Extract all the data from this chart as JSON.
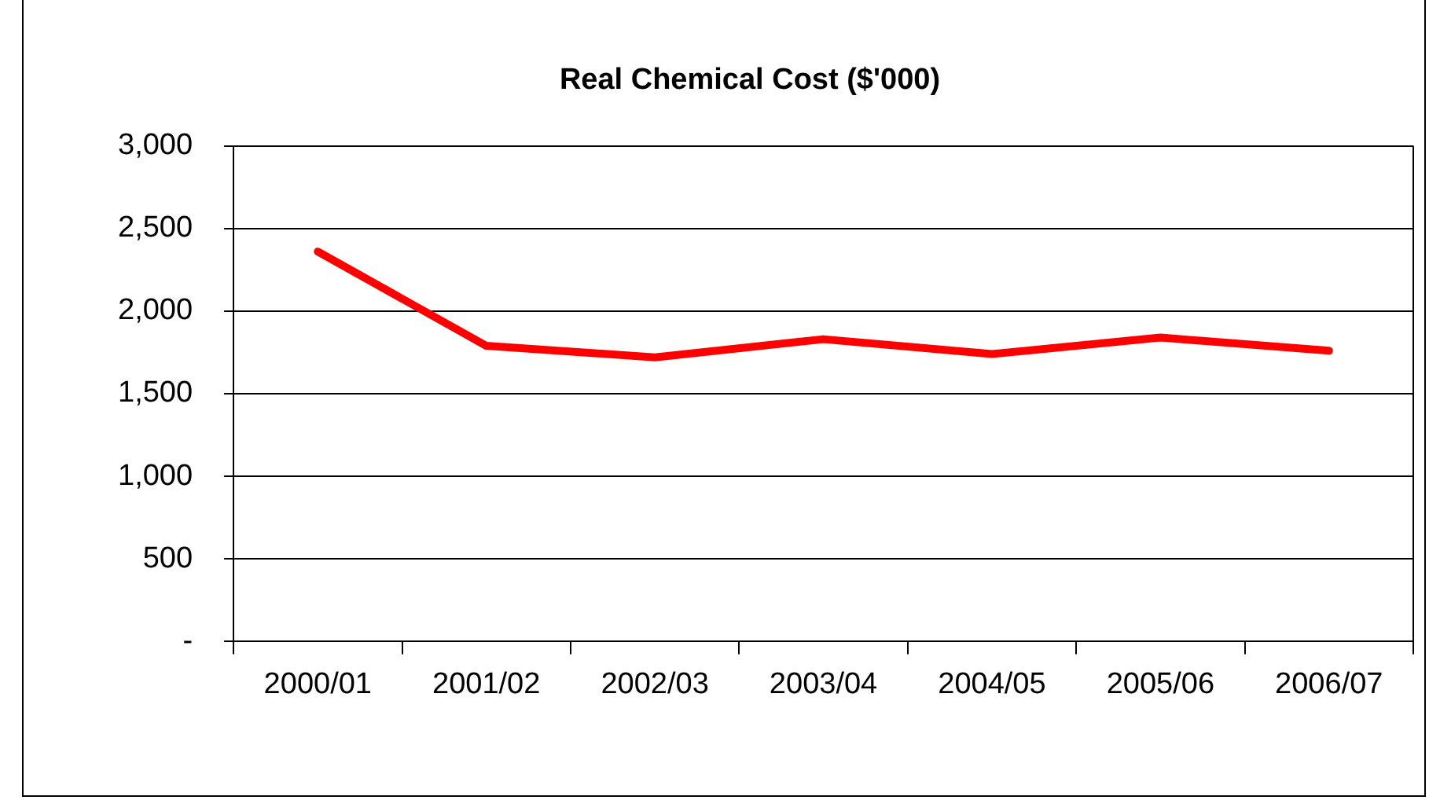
{
  "chart_data": {
    "type": "line",
    "title": "Real Chemical Cost ($'000)",
    "categories": [
      "2000/01",
      "2001/02",
      "2002/03",
      "2003/04",
      "2004/05",
      "2005/06",
      "2006/07"
    ],
    "series": [
      {
        "color": "#ff0000",
        "values": [
          2360,
          1790,
          1720,
          1830,
          1740,
          1840,
          1760
        ]
      }
    ],
    "ylim": [
      0,
      3000
    ],
    "yticks": [
      {
        "value": 0,
        "label": "-"
      },
      {
        "value": 500,
        "label": "500"
      },
      {
        "value": 1000,
        "label": "1,000"
      },
      {
        "value": 1500,
        "label": "1,500"
      },
      {
        "value": 2000,
        "label": "2,000"
      },
      {
        "value": 2500,
        "label": "2,500"
      },
      {
        "value": 3000,
        "label": "3,000"
      }
    ],
    "grid": "y",
    "legend": false,
    "marker": "none",
    "line_style": "solid"
  }
}
